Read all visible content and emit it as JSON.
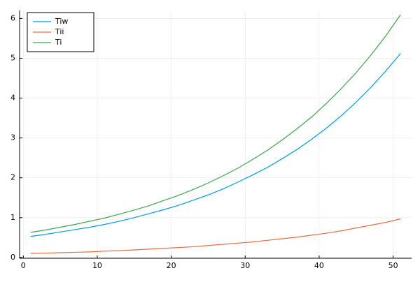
{
  "chart_data": {
    "type": "line",
    "x": [
      1,
      3,
      5,
      7,
      9,
      11,
      13,
      15,
      17,
      19,
      21,
      23,
      25,
      27,
      29,
      31,
      33,
      35,
      37,
      39,
      41,
      43,
      45,
      47,
      49,
      51
    ],
    "series": [
      {
        "name": "Tiw",
        "color": "#009af9",
        "values": [
          0.53,
          0.58,
          0.64,
          0.7,
          0.76,
          0.83,
          0.91,
          1.0,
          1.1,
          1.2,
          1.31,
          1.44,
          1.57,
          1.72,
          1.89,
          2.07,
          2.26,
          2.48,
          2.71,
          2.97,
          3.25,
          3.56,
          3.9,
          4.27,
          4.68,
          5.12
        ]
      },
      {
        "name": "Tii",
        "color": "#e26f46",
        "values": [
          0.1,
          0.11,
          0.12,
          0.13,
          0.14,
          0.16,
          0.17,
          0.19,
          0.21,
          0.23,
          0.25,
          0.27,
          0.3,
          0.33,
          0.36,
          0.39,
          0.43,
          0.47,
          0.51,
          0.56,
          0.61,
          0.67,
          0.74,
          0.81,
          0.88,
          0.97
        ]
      },
      {
        "name": "Ti",
        "color": "#3da44d",
        "values": [
          0.63,
          0.69,
          0.76,
          0.83,
          0.91,
          0.99,
          1.09,
          1.19,
          1.3,
          1.43,
          1.56,
          1.71,
          1.87,
          2.05,
          2.24,
          2.46,
          2.69,
          2.95,
          3.23,
          3.53,
          3.87,
          4.24,
          4.64,
          5.08,
          5.56,
          6.09
        ]
      }
    ],
    "xlim": [
      -0.5,
      52.5
    ],
    "xticks": [
      0,
      10,
      20,
      30,
      40,
      50
    ],
    "ylim": [
      -0.02,
      6.2
    ],
    "yticks": [
      0,
      1,
      2,
      3,
      4,
      5,
      6
    ],
    "grid": true,
    "legend": "top-left"
  }
}
